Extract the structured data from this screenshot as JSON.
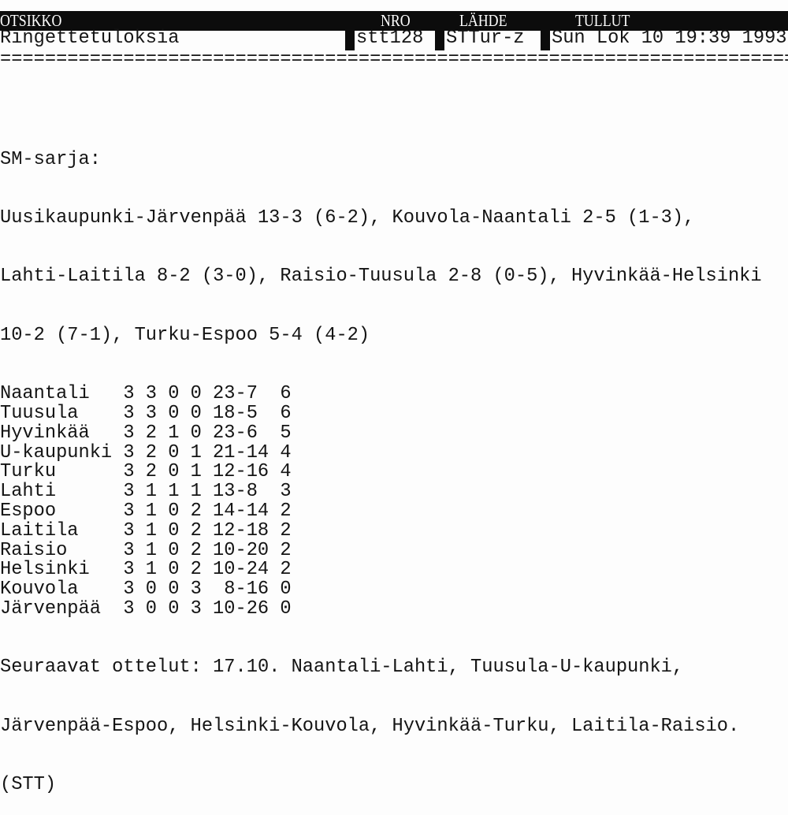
{
  "header": {
    "labels": {
      "title": "OTSIKKO",
      "number": "NRO",
      "source": "LÄHDE",
      "arrived": "TULLUT"
    },
    "values": {
      "title": "Ringettetuloksia",
      "number": "stt128",
      "source": "STTur-z",
      "arrived": "Sun Lok 10 19:39 1993"
    },
    "rule": "=============================================================================="
  },
  "article": {
    "section": "SM-sarja:",
    "results_lines": [
      "Uusikaupunki-Järvenpää 13-3 (6-2), Kouvola-Naantali 2-5 (1-3),",
      "Lahti-Laitila 8-2 (3-0), Raisio-Tuusula 2-8 (0-5), Hyvinkää-Helsinki",
      "10-2 (7-1), Turku-Espoo 5-4 (4-2)"
    ],
    "standings": [
      {
        "team": "Naantali",
        "p": "3",
        "w": "3",
        "d": "0",
        "l": "0",
        "goals": "23-7",
        "pts": "6"
      },
      {
        "team": "Tuusula",
        "p": "3",
        "w": "3",
        "d": "0",
        "l": "0",
        "goals": "18-5",
        "pts": "6"
      },
      {
        "team": "Hyvinkää",
        "p": "3",
        "w": "2",
        "d": "1",
        "l": "0",
        "goals": "23-6",
        "pts": "5"
      },
      {
        "team": "U-kaupunki",
        "p": "3",
        "w": "2",
        "d": "0",
        "l": "1",
        "goals": "21-14",
        "pts": "4"
      },
      {
        "team": "Turku",
        "p": "3",
        "w": "2",
        "d": "0",
        "l": "1",
        "goals": "12-16",
        "pts": "4"
      },
      {
        "team": "Lahti",
        "p": "3",
        "w": "1",
        "d": "1",
        "l": "1",
        "goals": "13-8",
        "pts": "3"
      },
      {
        "team": "Espoo",
        "p": "3",
        "w": "1",
        "d": "0",
        "l": "2",
        "goals": "14-14",
        "pts": "2"
      },
      {
        "team": "Laitila",
        "p": "3",
        "w": "1",
        "d": "0",
        "l": "2",
        "goals": "12-18",
        "pts": "2"
      },
      {
        "team": "Raisio",
        "p": "3",
        "w": "1",
        "d": "0",
        "l": "2",
        "goals": "10-20",
        "pts": "2"
      },
      {
        "team": "Helsinki",
        "p": "3",
        "w": "1",
        "d": "0",
        "l": "2",
        "goals": "10-24",
        "pts": "2"
      },
      {
        "team": "Kouvola",
        "p": "3",
        "w": "0",
        "d": "0",
        "l": "3",
        "goals": " 8-16",
        "pts": "0"
      },
      {
        "team": "Järvenpää",
        "p": "3",
        "w": "0",
        "d": "0",
        "l": "3",
        "goals": "10-26",
        "pts": "0"
      }
    ],
    "next_lines": [
      "Seuraavat ottelut: 17.10. Naantali-Lahti, Tuusula-U-kaupunki,",
      "Järvenpää-Espoo, Helsinki-Kouvola, Hyvinkää-Turku, Laitila-Raisio."
    ],
    "byline": "(STT)"
  }
}
